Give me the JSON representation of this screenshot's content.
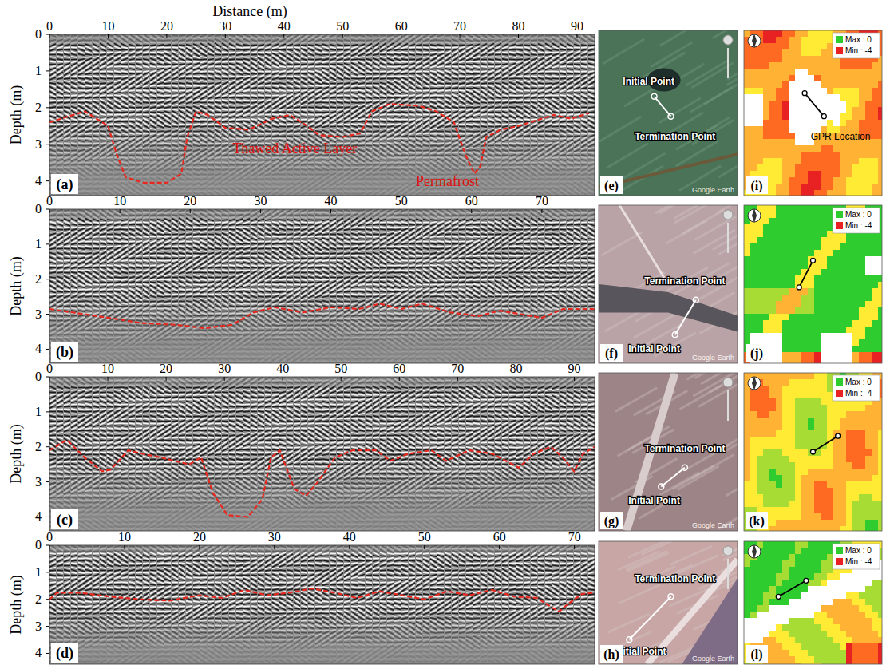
{
  "chart_data": [
    {
      "type": "line",
      "panel": "(a)",
      "x_label": "Distance (m)",
      "y_label": "Depth (m)",
      "annotations": [
        "Thawed Active Layer",
        "Permafrost"
      ],
      "x": [
        0,
        3,
        6,
        8,
        10,
        11.5,
        13,
        16,
        20,
        22.5,
        23.5,
        25,
        27,
        30,
        34,
        38,
        41,
        44,
        46,
        50,
        53,
        55,
        58,
        63,
        66,
        69,
        71,
        72.5,
        73.5,
        74.5,
        77,
        80,
        83,
        86,
        89,
        92
      ],
      "values": [
        2.4,
        2.25,
        2.1,
        2.3,
        2.5,
        3.3,
        3.9,
        4.05,
        4.05,
        3.8,
        2.8,
        2.1,
        2.2,
        2.55,
        2.6,
        2.3,
        2.2,
        2.5,
        2.75,
        2.8,
        2.7,
        2.1,
        1.9,
        1.95,
        2.1,
        2.4,
        3.3,
        3.8,
        3.6,
        2.8,
        2.6,
        2.5,
        2.35,
        2.2,
        2.3,
        2.15
      ],
      "color": "#e8281e",
      "line_style": "dashed",
      "xlim": [
        0,
        93
      ],
      "ylim": [
        4.4,
        0
      ],
      "xticks": [
        0,
        10,
        20,
        30,
        40,
        50,
        60,
        70,
        80,
        90
      ],
      "yticks": [
        0,
        1,
        2,
        3,
        4
      ]
    },
    {
      "type": "line",
      "panel": "(b)",
      "y_label": "Depth (m)",
      "x": [
        0,
        5,
        10,
        13,
        18,
        22,
        26,
        29,
        32,
        36,
        40,
        44,
        47,
        50,
        53,
        57,
        61,
        64,
        67,
        70,
        73,
        77.5
      ],
      "values": [
        2.85,
        3.0,
        3.15,
        3.25,
        3.3,
        3.4,
        3.3,
        2.95,
        2.8,
        2.95,
        2.8,
        2.85,
        2.7,
        2.85,
        2.7,
        2.95,
        3.05,
        2.9,
        3.0,
        3.1,
        2.85,
        2.85
      ],
      "color": "#e8281e",
      "line_style": "dashed",
      "xlim": [
        0,
        77.5
      ],
      "ylim": [
        4.4,
        0
      ],
      "xticks": [
        0,
        10,
        20,
        30,
        40,
        50,
        60,
        70
      ],
      "yticks": [
        0,
        1,
        2,
        3,
        4
      ]
    },
    {
      "type": "line",
      "panel": "(c)",
      "y_label": "Depth (m)",
      "x": [
        0,
        3,
        6,
        9,
        10.5,
        13.5,
        16,
        19,
        24,
        26,
        28,
        30.5,
        34,
        36.5,
        38,
        39.5,
        42,
        44,
        46,
        49,
        52,
        56,
        58.5,
        61.5,
        65.5,
        68,
        72,
        76,
        80.5,
        83,
        86,
        88,
        90,
        91.5,
        93.5
      ],
      "values": [
        2.1,
        1.8,
        2.3,
        2.7,
        2.65,
        2.1,
        2.2,
        2.3,
        2.5,
        2.3,
        3.3,
        3.95,
        4.0,
        3.5,
        2.3,
        2.1,
        3.2,
        3.4,
        3.0,
        2.3,
        2.1,
        2.1,
        2.4,
        2.2,
        2.1,
        2.4,
        2.1,
        2.2,
        2.6,
        2.2,
        2.0,
        2.3,
        2.7,
        2.2,
        2.0
      ],
      "color": "#e8281e",
      "line_style": "dashed",
      "xlim": [
        0,
        93.5
      ],
      "ylim": [
        4.4,
        0
      ],
      "xticks": [
        0,
        10,
        20,
        30,
        40,
        50,
        60,
        70,
        80,
        90
      ],
      "yticks": [
        0,
        1,
        2,
        3,
        4
      ]
    },
    {
      "type": "line",
      "panel": "(d)",
      "y_label": "Depth (m)",
      "x": [
        0,
        1,
        4,
        8,
        12,
        16,
        20,
        23,
        26,
        29,
        32,
        35,
        38,
        41,
        44,
        47,
        50,
        53,
        56,
        59,
        62,
        65,
        67,
        68,
        69,
        71,
        72.7
      ],
      "values": [
        2.0,
        1.75,
        1.75,
        1.9,
        2.0,
        2.05,
        1.85,
        1.95,
        1.65,
        1.85,
        1.75,
        1.6,
        1.75,
        1.95,
        1.7,
        1.85,
        2.0,
        1.7,
        1.85,
        1.65,
        1.9,
        1.95,
        2.3,
        2.45,
        2.2,
        1.8,
        1.75
      ],
      "color": "#e8281e",
      "line_style": "dashed",
      "xlim": [
        0,
        72.7
      ],
      "ylim": [
        4.4,
        0
      ],
      "xticks": [
        0,
        10,
        20,
        30,
        40,
        50,
        60,
        70
      ],
      "yticks": [
        0,
        1,
        2,
        3,
        4
      ]
    }
  ],
  "images": [
    {
      "type": "satellite",
      "panel": "(e)",
      "labels": [
        "Initial Point",
        "Termination Point",
        "Google Earth"
      ]
    },
    {
      "type": "map",
      "panel": "(i)",
      "labels": [
        "Max : 0",
        "Min : -4",
        "GPR Location"
      ]
    },
    {
      "type": "satellite",
      "panel": "(f)",
      "labels": [
        "Initial Point",
        "Termination Point",
        "Google Earth"
      ]
    },
    {
      "type": "map",
      "panel": "(j)",
      "labels": [
        "Max : 0",
        "Min : -4"
      ]
    },
    {
      "type": "satellite",
      "panel": "(g)",
      "labels": [
        "Initial Point",
        "Termination Point",
        "Google Earth"
      ]
    },
    {
      "type": "map",
      "panel": "(k)",
      "labels": [
        "Max : 0",
        "Min : -4"
      ]
    },
    {
      "type": "satellite",
      "panel": "(h)",
      "labels": [
        "Initial Point",
        "Termination Point",
        "Google Earth"
      ]
    },
    {
      "type": "map",
      "panel": "(l)",
      "labels": [
        "Max : 0",
        "Min : -4"
      ]
    }
  ]
}
